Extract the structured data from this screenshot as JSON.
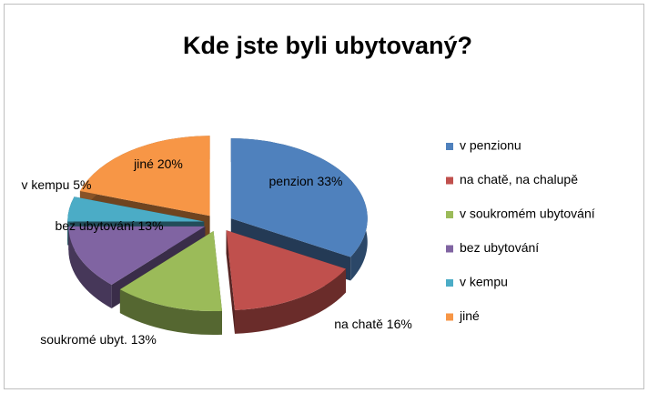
{
  "chart_data": {
    "type": "pie",
    "title": "Kde jste byli ubytovaný?",
    "categories": [
      "v penzionu",
      "na chatě, na chalupě",
      "v soukromém ubytování",
      "bez ubytování",
      "v kempu",
      "jiné"
    ],
    "values": [
      33,
      16,
      13,
      13,
      5,
      20
    ],
    "value_labels": [
      "penzion 33%",
      "na chatě 16%",
      "soukromé ubyt. 13%",
      "bez ubytování 13%",
      "v kempu 5%",
      "jiné 20%"
    ],
    "colors": [
      "#4f81bd",
      "#c0504d",
      "#9bbb59",
      "#8064a2",
      "#4bacc6",
      "#f79646"
    ],
    "legend": "right"
  }
}
